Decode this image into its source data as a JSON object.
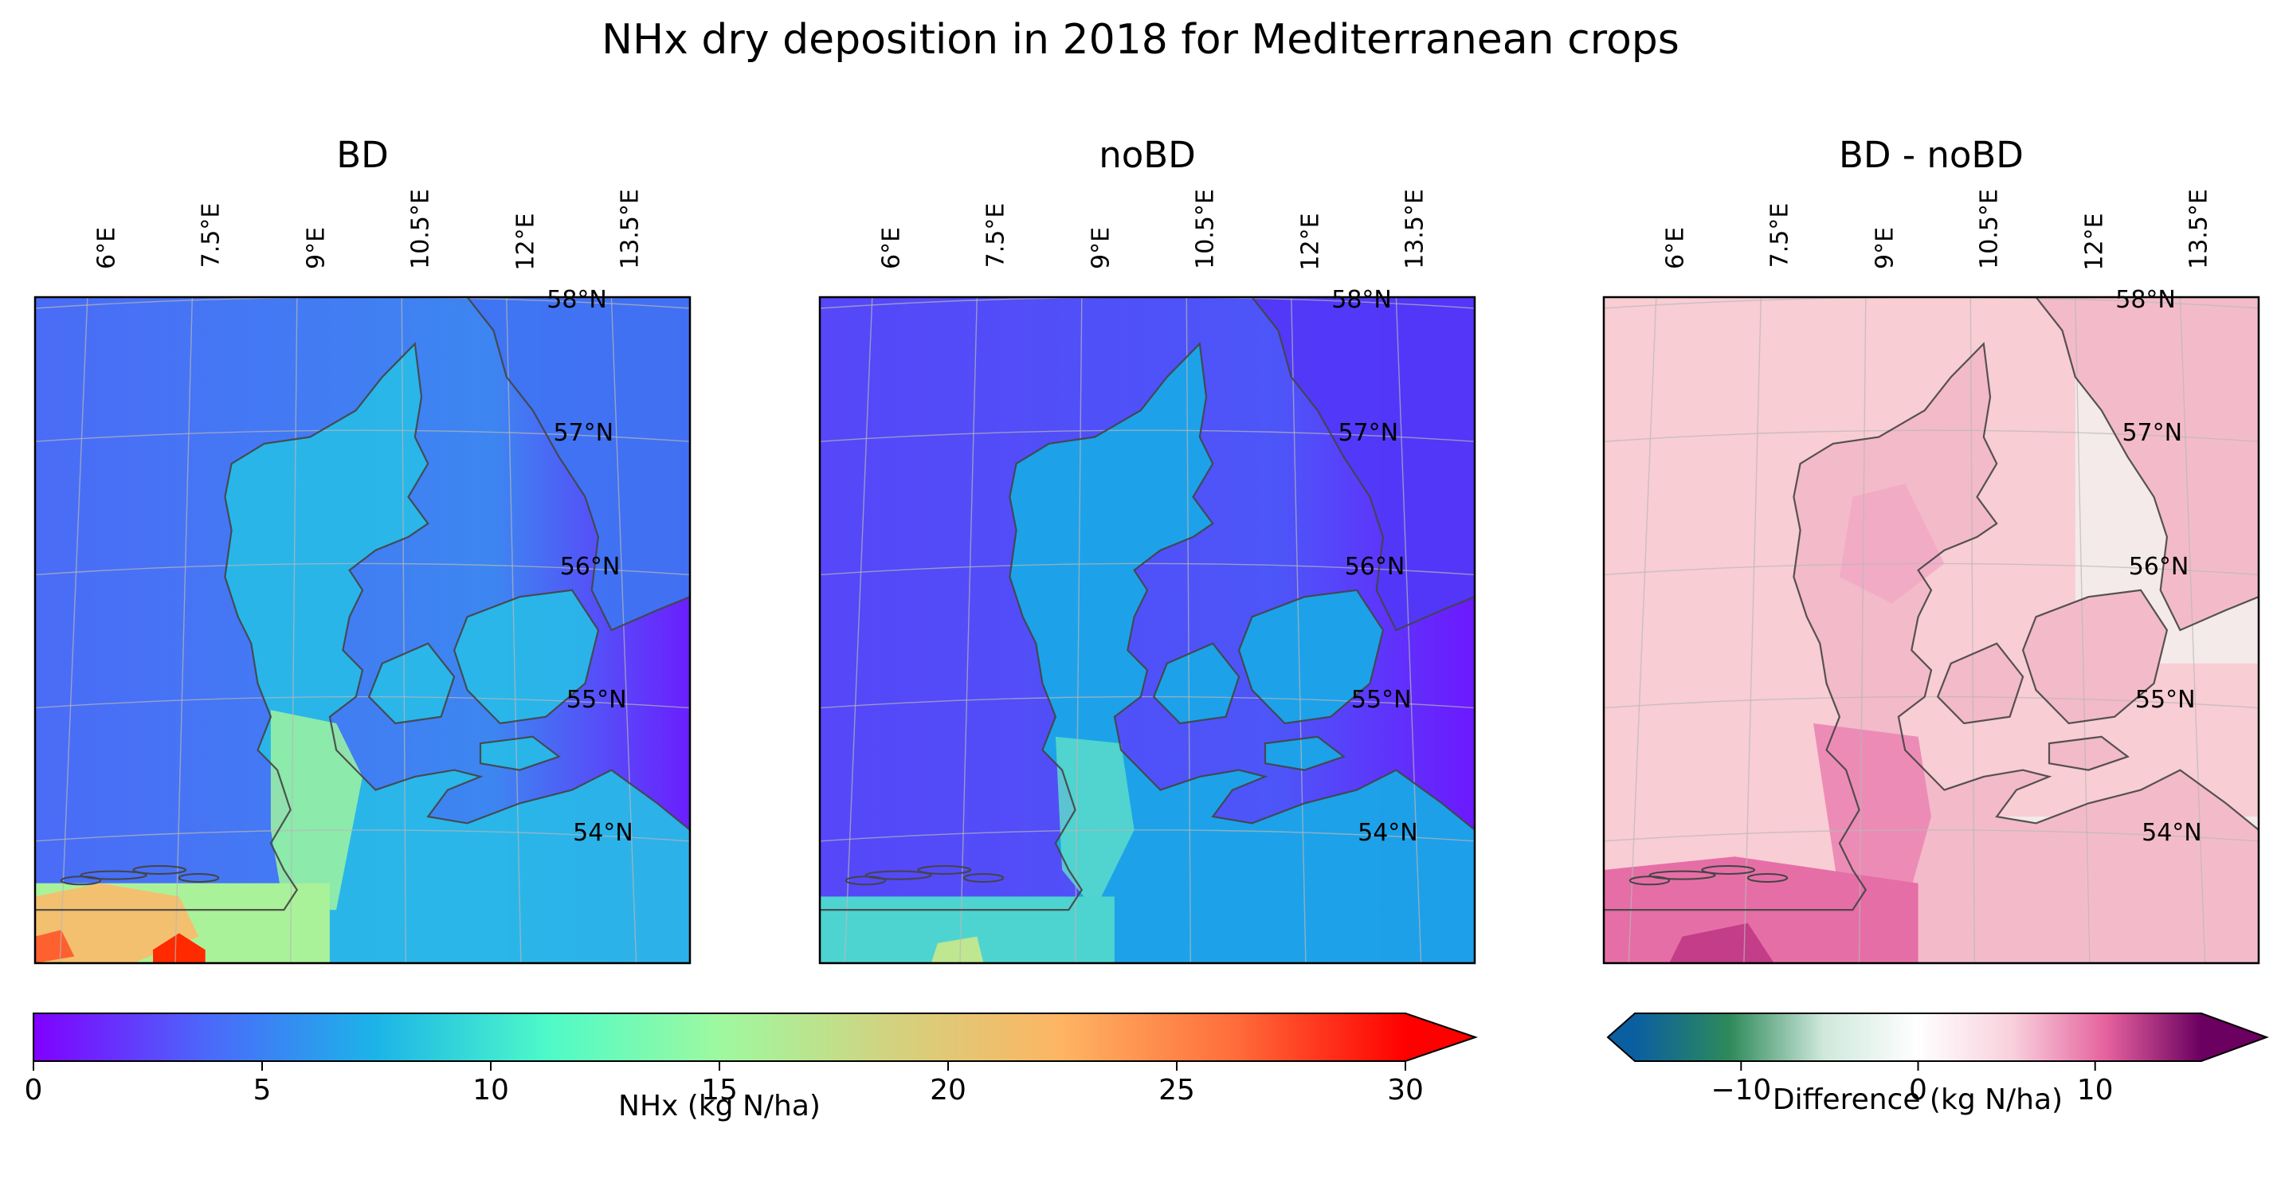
{
  "title": "NHx dry deposition in 2018 for Mediterranean crops",
  "panels": [
    {
      "id": "bd",
      "title": "BD"
    },
    {
      "id": "nobd",
      "title": "noBD"
    },
    {
      "id": "diff",
      "title": "BD - noBD"
    }
  ],
  "lon_labels": [
    "6°E",
    "7.5°E",
    "9°E",
    "10.5°E",
    "12°E",
    "13.5°E"
  ],
  "lat_labels": [
    "58°N",
    "57°N",
    "56°N",
    "55°N",
    "54°N"
  ],
  "colorbar_nhx": {
    "label": "NHx (kg N/ha)",
    "ticks": [
      "0",
      "5",
      "10",
      "15",
      "20",
      "25",
      "30"
    ],
    "range": [
      0,
      30
    ],
    "extend": "max",
    "colormap": "rainbow",
    "colors": [
      "#8000ff",
      "#4c67fa",
      "#1cb4e8",
      "#4efac8",
      "#9ef9a0",
      "#d2d27f",
      "#feb462",
      "#ff6d3b",
      "#ff0000"
    ]
  },
  "colorbar_diff": {
    "label": "Difference (kg N/ha)",
    "ticks": [
      "−10",
      "0",
      "10"
    ],
    "range": [
      -16,
      16
    ],
    "extend": "both",
    "colors": [
      "#0a5fa0",
      "#2e8a5a",
      "#cfe8dc",
      "#ffffff",
      "#f8d0dc",
      "#e5619d",
      "#6b0060"
    ]
  },
  "map_colors": {
    "sea_bd": "#4d66f5",
    "sea_nobd": "#5a3ff8",
    "land_bd": "#29b8e8",
    "land_nobd": "#1aa6e8",
    "hotspot": "#ff2a00",
    "diff_base": "#f8cdd4",
    "diff_low": "#f4eaea",
    "diff_high": "#e2559a",
    "coast": "#444444"
  }
}
